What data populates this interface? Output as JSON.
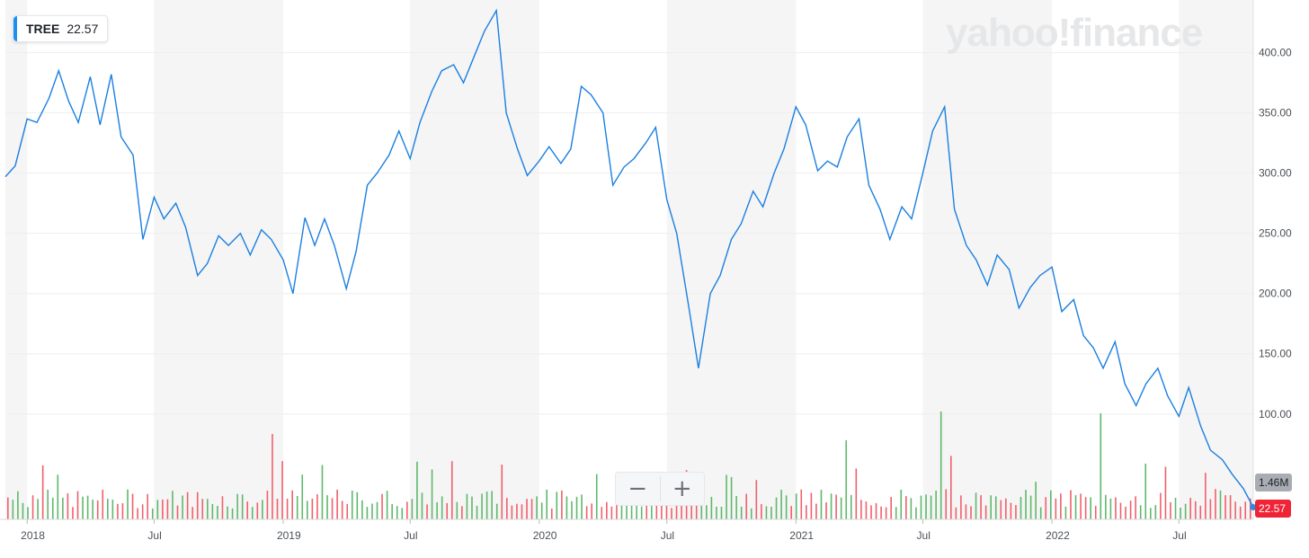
{
  "ticker": {
    "symbol": "TREE",
    "price": "22.57"
  },
  "branding": {
    "logo": "yahoo!finance"
  },
  "zoom": {
    "minus": "−",
    "plus": "+"
  },
  "tags": {
    "volume": "1.46M",
    "price": "22.57"
  },
  "colors": {
    "line": "#1b7fe0",
    "vol_up": "#5fb86c",
    "vol_down": "#f0606c",
    "band": "#f5f5f5",
    "accent": "#1e8ef0"
  },
  "chart_data": {
    "type": "line",
    "title": "",
    "xlabel": "",
    "ylabel": "",
    "x_range": [
      "2017-12-01",
      "2022-10-15"
    ],
    "ylim": [
      0,
      440
    ],
    "y_ticks": [
      100,
      150,
      200,
      250,
      300,
      350,
      400
    ],
    "y_tick_labels": [
      "100.00",
      "150.00",
      "200.00",
      "250.00",
      "300.00",
      "350.00",
      "400.00"
    ],
    "x_ticks": [
      {
        "label": "2018",
        "date": "2018-01-01"
      },
      {
        "label": "Jul",
        "date": "2018-07-01"
      },
      {
        "label": "2019",
        "date": "2019-01-01"
      },
      {
        "label": "Jul",
        "date": "2019-07-01"
      },
      {
        "label": "2020",
        "date": "2020-01-01"
      },
      {
        "label": "Jul",
        "date": "2020-07-01"
      },
      {
        "label": "2021",
        "date": "2021-01-01"
      },
      {
        "label": "Jul",
        "date": "2021-07-01"
      },
      {
        "label": "2022",
        "date": "2022-01-01"
      },
      {
        "label": "Jul",
        "date": "2022-07-01"
      }
    ],
    "grid": "horizontal, alternating shaded half-year bands",
    "price_series": {
      "name": "TREE",
      "points": [
        [
          "2017-12-01",
          297
        ],
        [
          "2017-12-15",
          306
        ],
        [
          "2018-01-01",
          345
        ],
        [
          "2018-01-15",
          342
        ],
        [
          "2018-02-01",
          362
        ],
        [
          "2018-02-15",
          385
        ],
        [
          "2018-03-01",
          360
        ],
        [
          "2018-03-15",
          342
        ],
        [
          "2018-04-01",
          380
        ],
        [
          "2018-04-15",
          340
        ],
        [
          "2018-05-01",
          382
        ],
        [
          "2018-05-15",
          330
        ],
        [
          "2018-06-01",
          315
        ],
        [
          "2018-06-15",
          245
        ],
        [
          "2018-07-01",
          280
        ],
        [
          "2018-07-15",
          262
        ],
        [
          "2018-08-01",
          275
        ],
        [
          "2018-08-15",
          255
        ],
        [
          "2018-09-01",
          215
        ],
        [
          "2018-09-15",
          225
        ],
        [
          "2018-10-01",
          248
        ],
        [
          "2018-10-15",
          240
        ],
        [
          "2018-11-01",
          250
        ],
        [
          "2018-11-15",
          232
        ],
        [
          "2018-12-01",
          253
        ],
        [
          "2018-12-15",
          245
        ],
        [
          "2019-01-01",
          228
        ],
        [
          "2019-01-15",
          200
        ],
        [
          "2019-02-01",
          263
        ],
        [
          "2019-02-15",
          240
        ],
        [
          "2019-03-01",
          262
        ],
        [
          "2019-03-15",
          240
        ],
        [
          "2019-04-01",
          204
        ],
        [
          "2019-04-15",
          235
        ],
        [
          "2019-05-01",
          290
        ],
        [
          "2019-05-15",
          300
        ],
        [
          "2019-06-01",
          315
        ],
        [
          "2019-06-15",
          335
        ],
        [
          "2019-07-01",
          312
        ],
        [
          "2019-07-15",
          342
        ],
        [
          "2019-08-01",
          368
        ],
        [
          "2019-08-15",
          385
        ],
        [
          "2019-09-01",
          390
        ],
        [
          "2019-09-15",
          375
        ],
        [
          "2019-10-01",
          398
        ],
        [
          "2019-10-15",
          418
        ],
        [
          "2019-11-01",
          435
        ],
        [
          "2019-11-15",
          350
        ],
        [
          "2019-12-01",
          320
        ],
        [
          "2019-12-15",
          298
        ],
        [
          "2020-01-01",
          310
        ],
        [
          "2020-01-15",
          322
        ],
        [
          "2020-02-01",
          308
        ],
        [
          "2020-02-15",
          320
        ],
        [
          "2020-03-01",
          372
        ],
        [
          "2020-03-15",
          365
        ],
        [
          "2020-04-01",
          350
        ],
        [
          "2020-04-15",
          290
        ],
        [
          "2020-05-01",
          305
        ],
        [
          "2020-05-15",
          312
        ],
        [
          "2020-06-01",
          325
        ],
        [
          "2020-06-15",
          338
        ],
        [
          "2020-07-01",
          278
        ],
        [
          "2020-07-15",
          250
        ],
        [
          "2020-08-01",
          190
        ],
        [
          "2020-08-15",
          138
        ],
        [
          "2020-09-01",
          200
        ],
        [
          "2020-09-15",
          215
        ],
        [
          "2020-10-01",
          245
        ],
        [
          "2020-10-15",
          258
        ],
        [
          "2020-11-01",
          285
        ],
        [
          "2020-11-15",
          272
        ],
        [
          "2020-12-01",
          300
        ],
        [
          "2020-12-15",
          320
        ],
        [
          "2021-01-01",
          355
        ],
        [
          "2021-01-15",
          340
        ],
        [
          "2021-02-01",
          302
        ],
        [
          "2021-02-15",
          310
        ],
        [
          "2021-03-01",
          305
        ],
        [
          "2021-03-15",
          330
        ],
        [
          "2021-04-01",
          345
        ],
        [
          "2021-04-15",
          290
        ],
        [
          "2021-05-01",
          270
        ],
        [
          "2021-05-15",
          245
        ],
        [
          "2021-06-01",
          272
        ],
        [
          "2021-06-15",
          262
        ],
        [
          "2021-07-01",
          300
        ],
        [
          "2021-07-15",
          335
        ],
        [
          "2021-08-01",
          355
        ],
        [
          "2021-08-15",
          270
        ],
        [
          "2021-09-01",
          240
        ],
        [
          "2021-09-15",
          228
        ],
        [
          "2021-10-01",
          207
        ],
        [
          "2021-10-15",
          232
        ],
        [
          "2021-11-01",
          220
        ],
        [
          "2021-11-15",
          188
        ],
        [
          "2021-12-01",
          205
        ],
        [
          "2021-12-15",
          215
        ],
        [
          "2022-01-01",
          222
        ],
        [
          "2022-01-15",
          185
        ],
        [
          "2022-02-01",
          195
        ],
        [
          "2022-02-15",
          165
        ],
        [
          "2022-03-01",
          155
        ],
        [
          "2022-03-15",
          138
        ],
        [
          "2022-04-01",
          160
        ],
        [
          "2022-04-15",
          125
        ],
        [
          "2022-05-01",
          107
        ],
        [
          "2022-05-15",
          125
        ],
        [
          "2022-06-01",
          138
        ],
        [
          "2022-06-15",
          115
        ],
        [
          "2022-07-01",
          98
        ],
        [
          "2022-07-15",
          122
        ],
        [
          "2022-08-01",
          90
        ],
        [
          "2022-08-15",
          70
        ],
        [
          "2022-09-01",
          62
        ],
        [
          "2022-09-15",
          50
        ],
        [
          "2022-10-01",
          38
        ],
        [
          "2022-10-15",
          22.57
        ]
      ]
    }
  }
}
